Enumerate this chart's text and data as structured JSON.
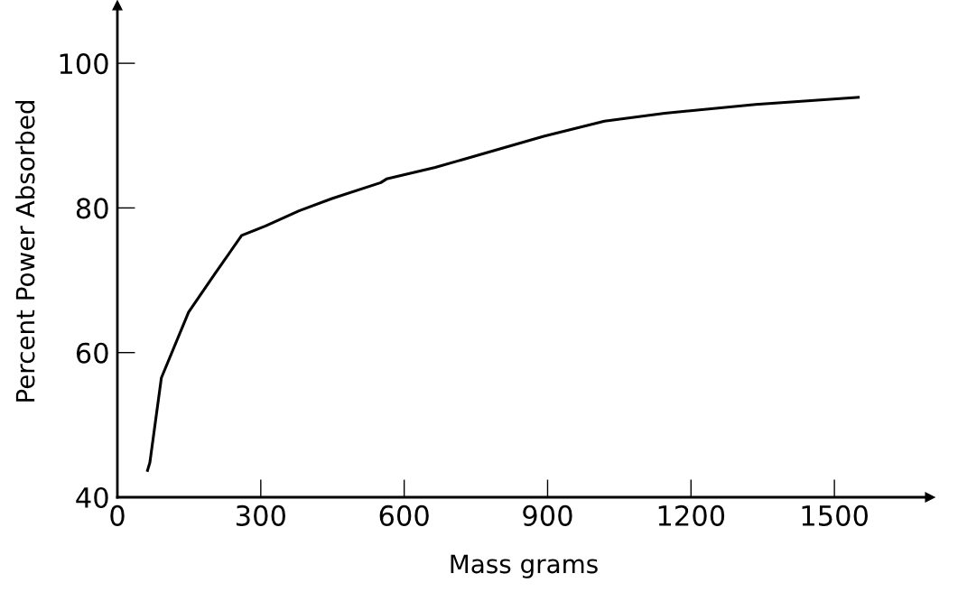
{
  "chart_data": {
    "type": "line",
    "xlabel": "Mass grams",
    "ylabel": "Percent Power Absorbed",
    "x": [
      63,
      68,
      92,
      149,
      203,
      260,
      310,
      380,
      449,
      551,
      563,
      665,
      892,
      1019,
      1145,
      1335,
      1550
    ],
    "series": [
      {
        "color": "#000000",
        "values": [
          43.7,
          44.8,
          56.5,
          65.6,
          70.8,
          76.2,
          77.5,
          79.6,
          81.3,
          83.5,
          84.0,
          85.6,
          89.9,
          92.0,
          93.1,
          94.3,
          95.3
        ]
      }
    ],
    "xlim": [
      0,
      1700
    ],
    "xticks": [
      0,
      300,
      600,
      900,
      1200,
      1500
    ],
    "ylim": [
      40,
      108
    ],
    "yticks": [
      40,
      60,
      80,
      100
    ],
    "marker": "none",
    "line_style": "solid"
  }
}
